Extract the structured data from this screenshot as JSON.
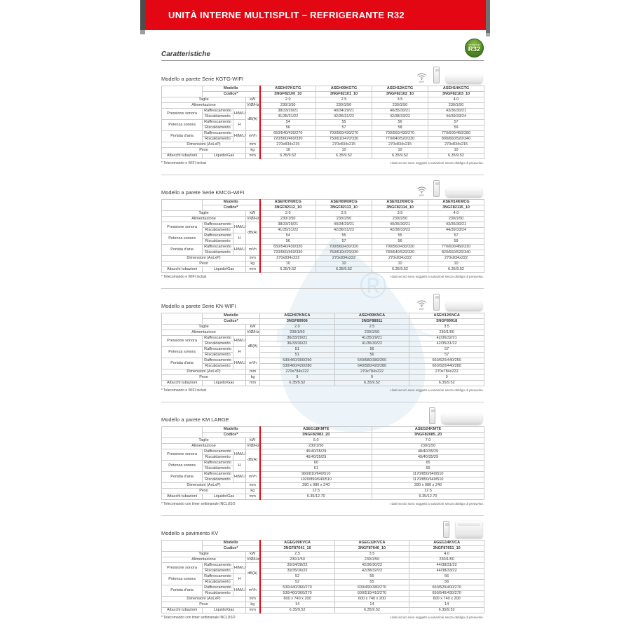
{
  "page": {
    "header_title": "UNITÀ INTERNE MULTISPLIT – REFRIGERANTE R32",
    "section_heading": "Caratteristiche",
    "r32_badge": {
      "small": "refrigerante",
      "big": "R32"
    },
    "accent_color": "#e30613",
    "badge_green": "#5a9427"
  },
  "labels": {
    "modello": "Modello",
    "codice": "Codice*",
    "taglie": "Taglie",
    "alimentazione": "Alimentazione",
    "pressione": "Pressione sonora",
    "potenza": "Potenza sonora",
    "portata": "Portata d'aria",
    "dimensioni": "Dimensioni (AxLxP)",
    "peso": "Peso",
    "attacchi": "Attacchi tubazioni",
    "raffrescamento": "Raffrescamento",
    "riscaldamento": "Riscaldamento",
    "hmlq": "H/M/L/Q",
    "h": "H",
    "liquido_gas": "Liquido/Gas"
  },
  "units": {
    "kw": "kW",
    "vhz": "V/Ø/Hz",
    "dba": "dB(A)",
    "m3h": "m³/h",
    "mm": "mm",
    "kg": "kg"
  },
  "footnotes": {
    "right": "I dati tecnici sono soggetti a variazioni senza obbligo di preavviso."
  },
  "tables": [
    {
      "title": "Modello a parete Serie KGTG-WIFI",
      "icons": [
        "wifi-icon",
        "remote-icon",
        "wall-unit-image"
      ],
      "wifi_label": "WIFI",
      "red_divider": true,
      "models": [
        "ASEH07KGTG",
        "ASEH09KGTG",
        "ASEH12KGTG",
        "ASEH14KGTG"
      ],
      "codes": [
        "3NGF82100_10",
        "3NGF82101_10",
        "3NGF82102_10",
        "3NGF82103_10"
      ],
      "taglie": [
        "2.0",
        "2.5",
        "3.5",
        "4.0"
      ],
      "alimentazione": [
        "230/1/50",
        "230/1/50",
        "230/1/50",
        "230/1/50"
      ],
      "pressione_raff": [
        "38/33/29/21",
        "40/34/29/21",
        "40/35/30/21",
        "43/36/30/21"
      ],
      "pressione_risc": [
        "41/35/31/22",
        "42/36/31/22",
        "42/38/33/22",
        "44/39/33/24"
      ],
      "potenza_raff": [
        "54",
        "55",
        "56",
        "57"
      ],
      "potenza_risc": [
        "56",
        "57",
        "58",
        "59"
      ],
      "portata_raff": [
        "650/540/430/270",
        "700/560/430/270",
        "700/560/430/270",
        "770/600/450/280"
      ],
      "portata_risc": [
        "720/560/460/330",
        "750/610/470/330",
        "770/640/520/330",
        "800/660/520/340"
      ],
      "dimensioni": [
        "270x834x215",
        "270x834x215",
        "270x834x215",
        "270x834x215"
      ],
      "peso": [
        "10",
        "10",
        "10",
        "10"
      ],
      "attacchi": [
        "6.35/9.52",
        "6.35/9.52",
        "6.35/9.52",
        "6.35/9.52"
      ],
      "footnote_left": "* Telecomando e WIFI inclusi"
    },
    {
      "title": "Modello a parete Serie KMCG-WIFI",
      "icons": [
        "wifi-icon",
        "remote-icon",
        "wall-unit-image"
      ],
      "wifi_label": "WIFI",
      "red_divider": true,
      "models": [
        "ASEH07KMCG",
        "ASEH09KMCG",
        "ASEH12KMCG",
        "ASEH14KMCG"
      ],
      "codes": [
        "3NGF82112_10",
        "3NGF82113_10",
        "3NGF82114_10",
        "3NGF82115_10"
      ],
      "taglie": [
        "2.0",
        "2.5",
        "3.5",
        "4.0"
      ],
      "alimentazione": [
        "230/1/50",
        "230/1/50",
        "230/1/50",
        "230/1/50"
      ],
      "pressione_raff": [
        "38/33/29/21",
        "40/34/29/21",
        "40/35/30/21",
        "43/36/30/21"
      ],
      "pressione_risc": [
        "41/35/31/22",
        "42/36/31/22",
        "42/38/33/22",
        "44/39/33/24"
      ],
      "potenza_raff": [
        "54",
        "55",
        "55",
        "57"
      ],
      "potenza_risc": [
        "56",
        "57",
        "56",
        "59"
      ],
      "portata_raff": [
        "650/540/430/320",
        "700/560/430/320",
        "700/560/430/330",
        "770/600/450/310"
      ],
      "portata_risc": [
        "720/560/460/330",
        "750/610/470/330",
        "780/640/520/330",
        "820/660/520/340"
      ],
      "dimensioni": [
        "270x834x222",
        "270x834x222",
        "270x834x222",
        "270x834x222"
      ],
      "peso": [
        "10",
        "10",
        "10",
        "10"
      ],
      "attacchi": [
        "6.35/9.52",
        "6.35/9.52",
        "6.35/9.52",
        "6.35/9.52"
      ],
      "footnote_left": "* Telecomando e WIFI inclusi"
    },
    {
      "title": "Modello a parete Serie KN-WIFI",
      "icons": [
        "wifi-icon",
        "remote-icon",
        "wall-unit-image"
      ],
      "wifi_label": "WIFI",
      "red_divider": false,
      "models": [
        "ASEH07KNCA",
        "ASEH09KNCA",
        "ASEH12KNCA"
      ],
      "codes": [
        "3NGF89906",
        "3NGF88911",
        "3NGF89918"
      ],
      "taglie": [
        "2.0",
        "2.5",
        "3.5"
      ],
      "alimentazione": [
        "230/1/50",
        "230/1/50",
        "230/1/50"
      ],
      "pressione_raff": [
        "36/33/29/21",
        "41/35/29/21",
        "42/36/32/21"
      ],
      "pressione_risc": [
        "36/33/30/22",
        "41/36/30/22",
        "42/35/31/22"
      ],
      "potenza_raff": [
        "51",
        "56",
        "57"
      ],
      "potenza_risc": [
        "51",
        "56",
        "57"
      ],
      "portata_raff": [
        "530/460/390/250",
        "640/580/380/250",
        "660/520/440/250"
      ],
      "portata_risc": [
        "530/460/420/280",
        "640/580/420/280",
        "660/520/440/280"
      ],
      "dimensioni": [
        "270x784x222",
        "270x784x222",
        "270x784x222"
      ],
      "peso": [
        "9",
        "9",
        "9"
      ],
      "attacchi": [
        "6.35/9.52",
        "6.35/9.52",
        "6.35/9.52"
      ],
      "footnote_left": "* Telecomando e WIFI inclusi"
    },
    {
      "title": "Modello a parete KM LARGE",
      "icons": [
        "remote-icon",
        "wall-unit-large-image"
      ],
      "wifi_label": "",
      "red_divider": true,
      "models": [
        "ASEG18KMTE",
        "ASEG24KMTE"
      ],
      "codes": [
        "3NGF82083_20",
        "3NGF82085_20"
      ],
      "taglie": [
        "5.0",
        "7.0"
      ],
      "alimentazione": [
        "230/1/50",
        "230/1/50"
      ],
      "pressione_raff": [
        "45/40/35/29",
        "48/40/35/29"
      ],
      "pressione_risc": [
        "46/40/35/29",
        "49/40/35/29"
      ],
      "potenza_raff": [
        "60",
        "65"
      ],
      "potenza_risc": [
        "61",
        "65"
      ],
      "portata_raff": [
        "960/810/640/510",
        "1170/850/640/510"
      ],
      "portata_risc": [
        "1020/850/640/510",
        "1170/850/640/510"
      ],
      "dimensioni": [
        "280 x 980 x 240",
        "280 x 980 x 240"
      ],
      "peso": [
        "12.5",
        "12.5"
      ],
      "attacchi": [
        "6.35/12.70",
        "6.35/12.70"
      ],
      "footnote_left": "* Telecomando con timer settimanale INCLUSO"
    },
    {
      "title": "Modello a pavimento KV",
      "icons": [
        "remote-icon",
        "floor-unit-image"
      ],
      "wifi_label": "",
      "red_divider": true,
      "models": [
        "AGEG09KVCA",
        "AGEG12KVCA",
        "AGEG14KVCA"
      ],
      "codes": [
        "3NGF87641_10",
        "3NGF87646_10",
        "3NGF87651_10"
      ],
      "taglie": [
        "2.5",
        "3.5",
        "4.0"
      ],
      "alimentazione": [
        "230/1/50",
        "230/1/50",
        "230/1/50"
      ],
      "pressione_raff": [
        "39/34/28/22",
        "42/36/30/22",
        "44/38/31/22"
      ],
      "pressione_risc": [
        "39/35/30/22",
        "42/38/32/22",
        "44/38/33/22"
      ],
      "potenza_raff": [
        "52",
        "55",
        "56"
      ],
      "potenza_risc": [
        "52",
        "55",
        "56"
      ],
      "portata_raff": [
        "530/440/360/270",
        "600/490/380/270",
        "650/520/400/270"
      ],
      "portata_risc": [
        "530/460/360/270",
        "600/510/410/270",
        "650/540/430/270"
      ],
      "dimensioni": [
        "600 x 740 x 200",
        "600 x 740 x 200",
        "600 x 740 x 200"
      ],
      "peso": [
        "14",
        "14",
        "14"
      ],
      "attacchi": [
        "6.35/9.52",
        "6.35/9.52",
        "6.35/9.52"
      ],
      "footnote_left": "* Telecomando con timer settimanale INCLUSO"
    }
  ]
}
